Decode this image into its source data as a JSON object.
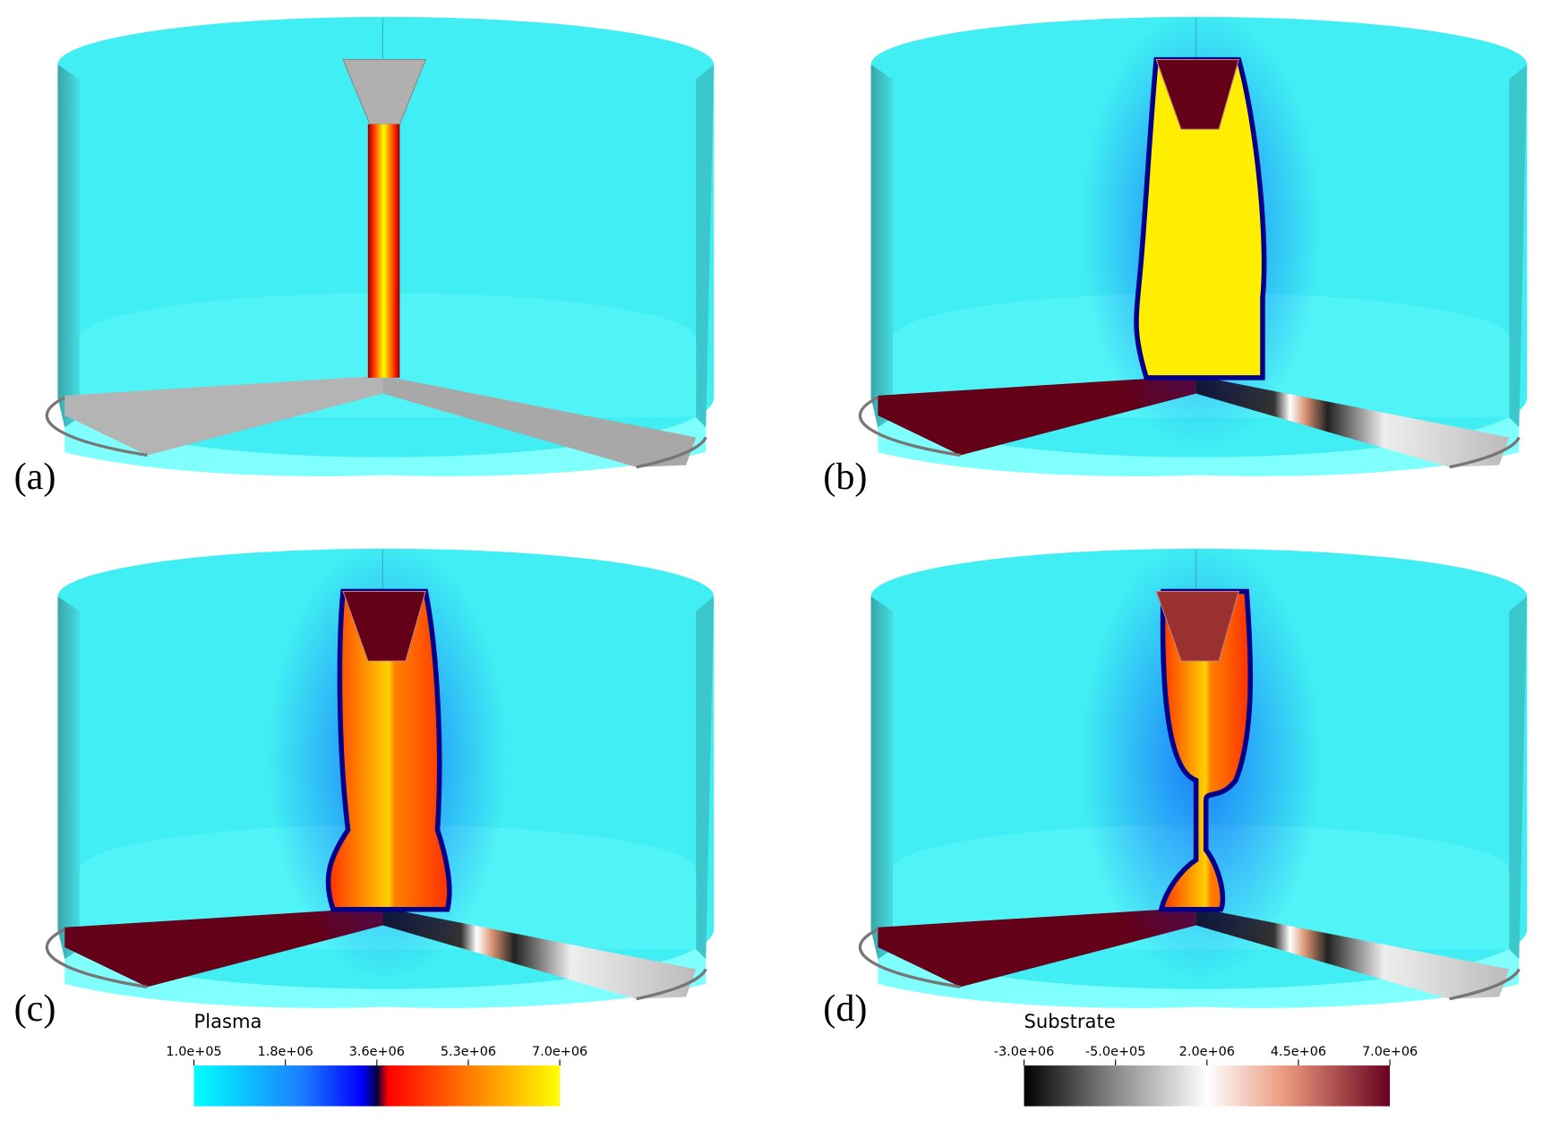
{
  "panels": [
    {
      "label": "(a)"
    },
    {
      "label": "(b)"
    },
    {
      "label": "(c)"
    },
    {
      "label": "(d)"
    }
  ],
  "colorbars": [
    {
      "title": "Plasma",
      "lim": [
        100000,
        7000000
      ],
      "ticks": [
        {
          "value": 100000,
          "label": "1.0e+05"
        },
        {
          "value": 1825000,
          "label": "1.8e+06"
        },
        {
          "value": 3550000,
          "label": "3.6e+06"
        },
        {
          "value": 5275000,
          "label": "5.3e+06"
        },
        {
          "value": 7000000,
          "label": "7.0e+06"
        }
      ]
    },
    {
      "title": "Substrate",
      "lim": [
        -3000000,
        7000000
      ],
      "ticks": [
        {
          "value": -3000000,
          "label": "-3.0e+06"
        },
        {
          "value": -500000,
          "label": "-5.0e+05"
        },
        {
          "value": 2000000,
          "label": "2.0e+06"
        },
        {
          "value": 4500000,
          "label": "4.5e+06"
        },
        {
          "value": 7000000,
          "label": "7.0e+06"
        }
      ]
    }
  ]
}
